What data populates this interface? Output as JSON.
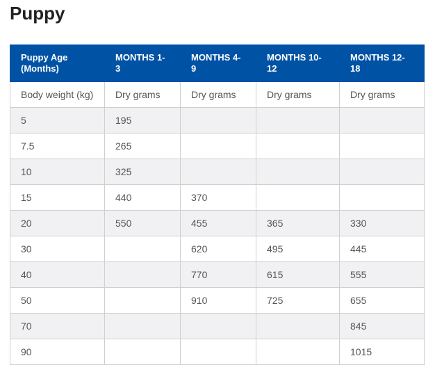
{
  "title": "Puppy",
  "table": {
    "header": [
      "Puppy Age (Months)",
      "MONTHS 1-3",
      "MONTHS 4-9",
      "MONTHS 10-12",
      "MONTHS 12-18"
    ],
    "rows": [
      [
        "Body weight (kg)",
        "Dry grams",
        "Dry grams",
        "Dry grams",
        "Dry grams"
      ],
      [
        "5",
        "195",
        null,
        null,
        null
      ],
      [
        "7.5",
        "265",
        null,
        null,
        null
      ],
      [
        "10",
        "325",
        null,
        null,
        null
      ],
      [
        "15",
        "440",
        "370",
        null,
        null
      ],
      [
        "20",
        "550",
        "455",
        "365",
        "330"
      ],
      [
        "30",
        null,
        "620",
        "495",
        "445"
      ],
      [
        "40",
        null,
        "770",
        "615",
        "555"
      ],
      [
        "50",
        null,
        "910",
        "725",
        "655"
      ],
      [
        "70",
        null,
        null,
        null,
        "845"
      ],
      [
        "90",
        null,
        null,
        null,
        "1015"
      ]
    ]
  }
}
